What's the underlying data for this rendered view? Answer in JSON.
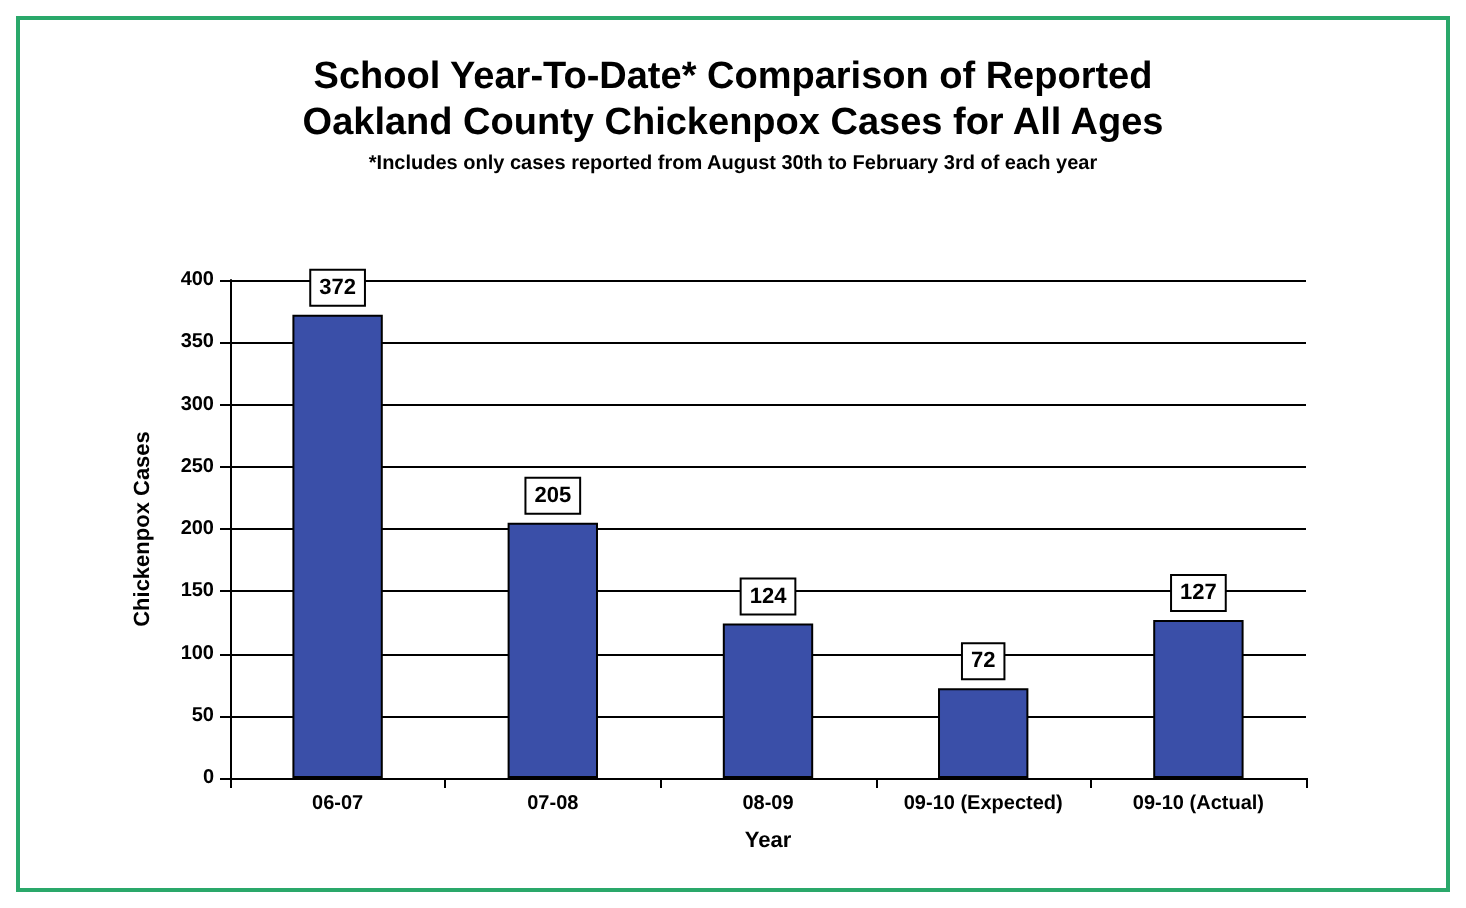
{
  "chart_data": {
    "type": "bar",
    "title": "School Year-To-Date* Comparison of Reported\nOakland County Chickenpox Cases for All Ages",
    "subtitle": "*Includes only cases reported from August 30th to February 3rd of each year",
    "xlabel": "Year",
    "ylabel": "Chickenpox Cases",
    "categories": [
      "06-07",
      "07-08",
      "08-09",
      "09-10 (Expected)",
      "09-10 (Actual)"
    ],
    "values": [
      372,
      205,
      124,
      72,
      127
    ],
    "color": "#3a4fa8",
    "ylim": [
      0,
      400
    ],
    "yticks": [
      0,
      50,
      100,
      150,
      200,
      250,
      300,
      350,
      400
    ],
    "grid": "y",
    "data_labels": true
  }
}
